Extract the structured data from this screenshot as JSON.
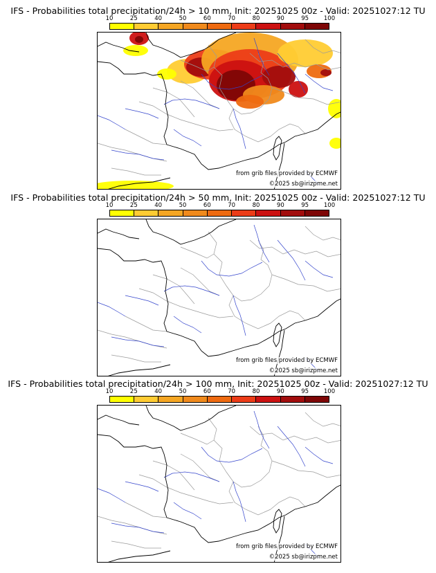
{
  "colorbar": {
    "tick_labels": [
      "10",
      "25",
      "40",
      "50",
      "60",
      "70",
      "80",
      "90",
      "95",
      "100"
    ],
    "colors": [
      "#ffff00",
      "#ffcc33",
      "#f5a623",
      "#f08a1c",
      "#ee6a10",
      "#ec3c18",
      "#cc1111",
      "#a20d0d",
      "#7e0606",
      "#5a0000"
    ]
  },
  "source_note": "from grib files provided by ECMWF",
  "copyright": "©2025 sb@irizpme.net",
  "panels": [
    {
      "title": "IFS - Probabilities total precipitation/24h > 10 mm, Init: 20251025 00z - Valid: 20251027:12 TU",
      "threshold_mm": 10,
      "has_precip": true
    },
    {
      "title": "IFS - Probabilities total precipitation/24h > 50 mm, Init: 20251025 00z - Valid: 20251027:12 TU",
      "threshold_mm": 50,
      "has_precip": false
    },
    {
      "title": "IFS - Probabilities total precipitation/24h > 100 mm, Init: 20251025 00z - Valid: 20251027:12 TU",
      "threshold_mm": 100,
      "has_precip": false
    }
  ]
}
